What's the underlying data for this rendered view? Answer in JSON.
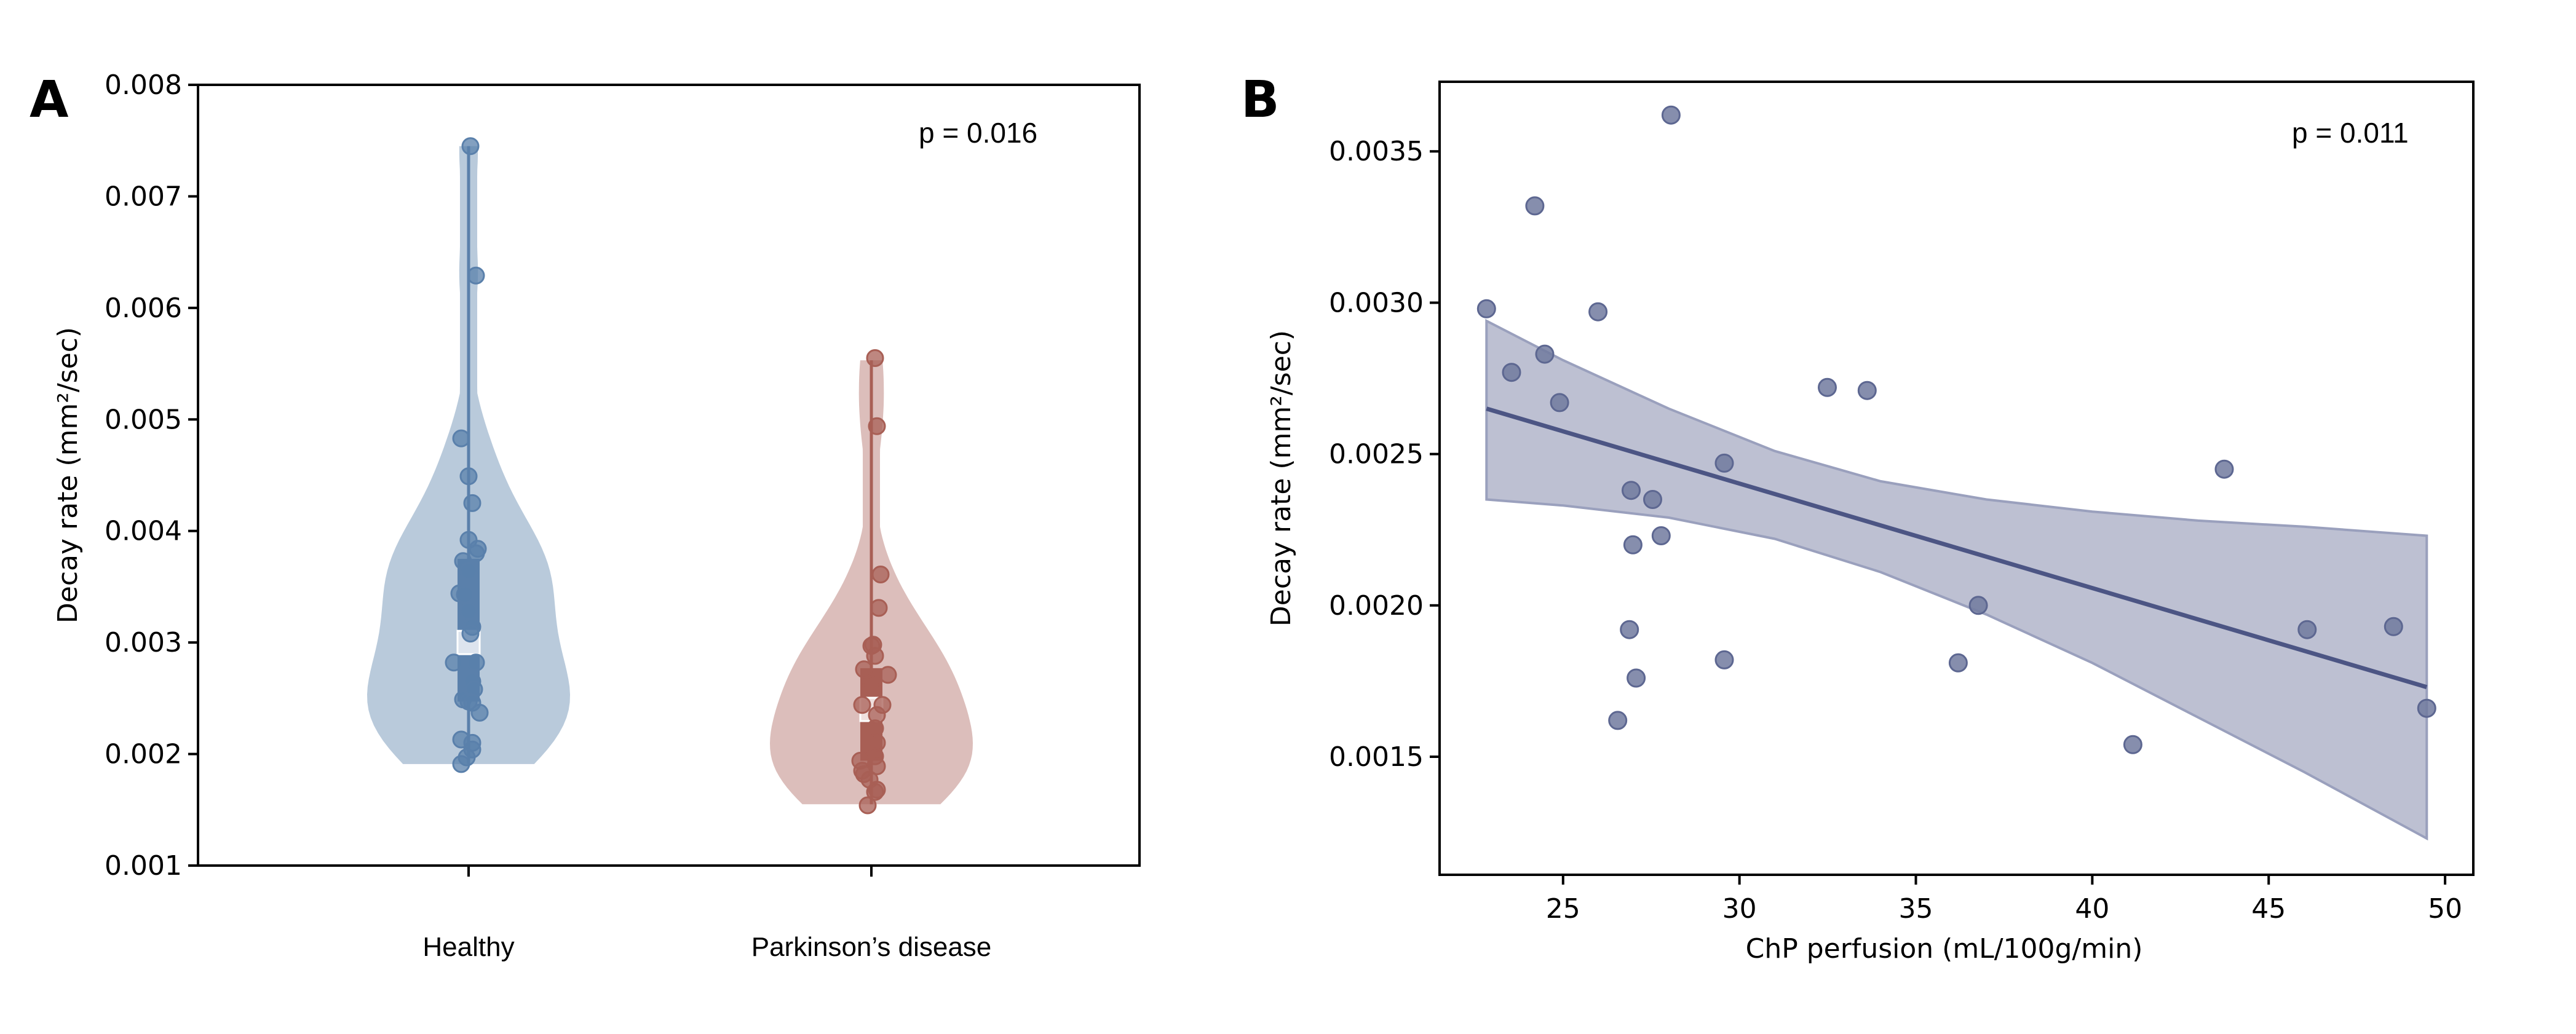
{
  "chart_data": [
    {
      "panel": "A",
      "type": "violin",
      "xlabel": "",
      "ylabel": "Decay rate (mm²/sec)",
      "ylim": [
        0.001,
        0.008
      ],
      "yticks": [
        "0.001",
        "0.002",
        "0.003",
        "0.004",
        "0.005",
        "0.006",
        "0.007",
        "0.008"
      ],
      "annotation": "p = 0.016",
      "categories": [
        "Healthy",
        "Parkinson’s disease"
      ],
      "series": [
        {
          "name": "Healthy",
          "color": "#5a80ab",
          "fill": "#b9cadb",
          "box": {
            "q1": 0.00247,
            "median": 0.003,
            "q3": 0.00375,
            "min": 0.00191,
            "max": 0.00745
          },
          "values": [
            0.00745,
            0.00629,
            0.00483,
            0.00449,
            0.00425,
            0.00392,
            0.00384,
            0.0038,
            0.00373,
            0.00364,
            0.00344,
            0.00343,
            0.00328,
            0.00314,
            0.00308,
            0.00282,
            0.00282,
            0.00265,
            0.00258,
            0.00249,
            0.00247,
            0.00246,
            0.00237,
            0.00213,
            0.0021,
            0.00204,
            0.00197,
            0.00191
          ],
          "jitter": [
            0.01,
            0.04,
            -0.04,
            0.0,
            0.02,
            0.0,
            0.05,
            0.04,
            -0.03,
            0.0,
            -0.05,
            -0.02,
            0.0,
            0.02,
            0.01,
            -0.08,
            0.04,
            0.02,
            0.03,
            -0.03,
            0.0,
            0.02,
            0.06,
            -0.04,
            0.02,
            0.02,
            -0.01,
            -0.04
          ]
        },
        {
          "name": "Parkinson’s disease",
          "color": "#a85f55",
          "fill": "#dcbebb",
          "box": {
            "q1": 0.00194,
            "median": 0.0024,
            "q3": 0.00277,
            "min": 0.00155,
            "max": 0.00553
          },
          "values": [
            0.00555,
            0.00494,
            0.00361,
            0.00331,
            0.00298,
            0.00297,
            0.00288,
            0.00276,
            0.00271,
            0.00262,
            0.00244,
            0.00244,
            0.00235,
            0.00223,
            0.0021,
            0.00198,
            0.00194,
            0.00189,
            0.00185,
            0.00182,
            0.00177,
            0.00168,
            0.00166,
            0.00154
          ],
          "jitter": [
            0.02,
            0.03,
            0.05,
            0.04,
            0.01,
            0.0,
            0.02,
            -0.04,
            0.09,
            0.0,
            -0.05,
            0.06,
            0.03,
            0.02,
            0.03,
            0.02,
            -0.06,
            0.03,
            -0.05,
            -0.04,
            -0.01,
            0.03,
            0.02,
            -0.02
          ]
        }
      ]
    },
    {
      "panel": "B",
      "type": "scatter",
      "xlabel": "ChP perfusion (mL/100g/min)",
      "ylabel": "Decay rate (mm²/sec)",
      "xlim": [
        21.5,
        50.8
      ],
      "ylim": [
        0.00111,
        0.00373
      ],
      "xticks": [
        "25",
        "30",
        "35",
        "40",
        "45",
        "50"
      ],
      "yticks": [
        "0.0015",
        "0.0020",
        "0.0025",
        "0.0030",
        "0.0035"
      ],
      "annotation": "p = 0.011",
      "color": "#717a9f",
      "line_color": "#4c5584",
      "band_color": "#b9bdd0",
      "points": [
        {
          "x": 22.83,
          "y": 0.00298
        },
        {
          "x": 23.54,
          "y": 0.00277
        },
        {
          "x": 24.2,
          "y": 0.00332
        },
        {
          "x": 24.48,
          "y": 0.00283
        },
        {
          "x": 24.9,
          "y": 0.00267
        },
        {
          "x": 25.99,
          "y": 0.00297
        },
        {
          "x": 28.06,
          "y": 0.00362
        },
        {
          "x": 26.93,
          "y": 0.00238
        },
        {
          "x": 27.54,
          "y": 0.00235
        },
        {
          "x": 26.98,
          "y": 0.0022
        },
        {
          "x": 27.78,
          "y": 0.00223
        },
        {
          "x": 26.88,
          "y": 0.00192
        },
        {
          "x": 27.07,
          "y": 0.00176
        },
        {
          "x": 26.55,
          "y": 0.00162
        },
        {
          "x": 29.57,
          "y": 0.00247
        },
        {
          "x": 29.57,
          "y": 0.00182
        },
        {
          "x": 32.49,
          "y": 0.00272
        },
        {
          "x": 33.62,
          "y": 0.00271
        },
        {
          "x": 36.77,
          "y": 0.002
        },
        {
          "x": 36.2,
          "y": 0.00181
        },
        {
          "x": 41.15,
          "y": 0.00154
        },
        {
          "x": 43.74,
          "y": 0.00245
        },
        {
          "x": 46.09,
          "y": 0.00192
        },
        {
          "x": 48.54,
          "y": 0.00193
        },
        {
          "x": 49.48,
          "y": 0.00166
        }
      ],
      "regression": {
        "x": [
          22.83,
          49.48
        ],
        "y": [
          0.00265,
          0.00173
        ]
      },
      "ci_band": {
        "x": [
          22.83,
          25,
          28,
          31,
          34,
          37,
          40,
          43,
          46,
          49.48
        ],
        "upper": [
          0.00294,
          0.00281,
          0.00265,
          0.00251,
          0.00241,
          0.00235,
          0.00231,
          0.00228,
          0.00226,
          0.00223
        ],
        "lower": [
          0.00235,
          0.00233,
          0.00229,
          0.00222,
          0.00211,
          0.00197,
          0.00181,
          0.00163,
          0.00145,
          0.00123
        ]
      }
    }
  ],
  "panels": {
    "a_label": "A",
    "b_label": "B"
  }
}
